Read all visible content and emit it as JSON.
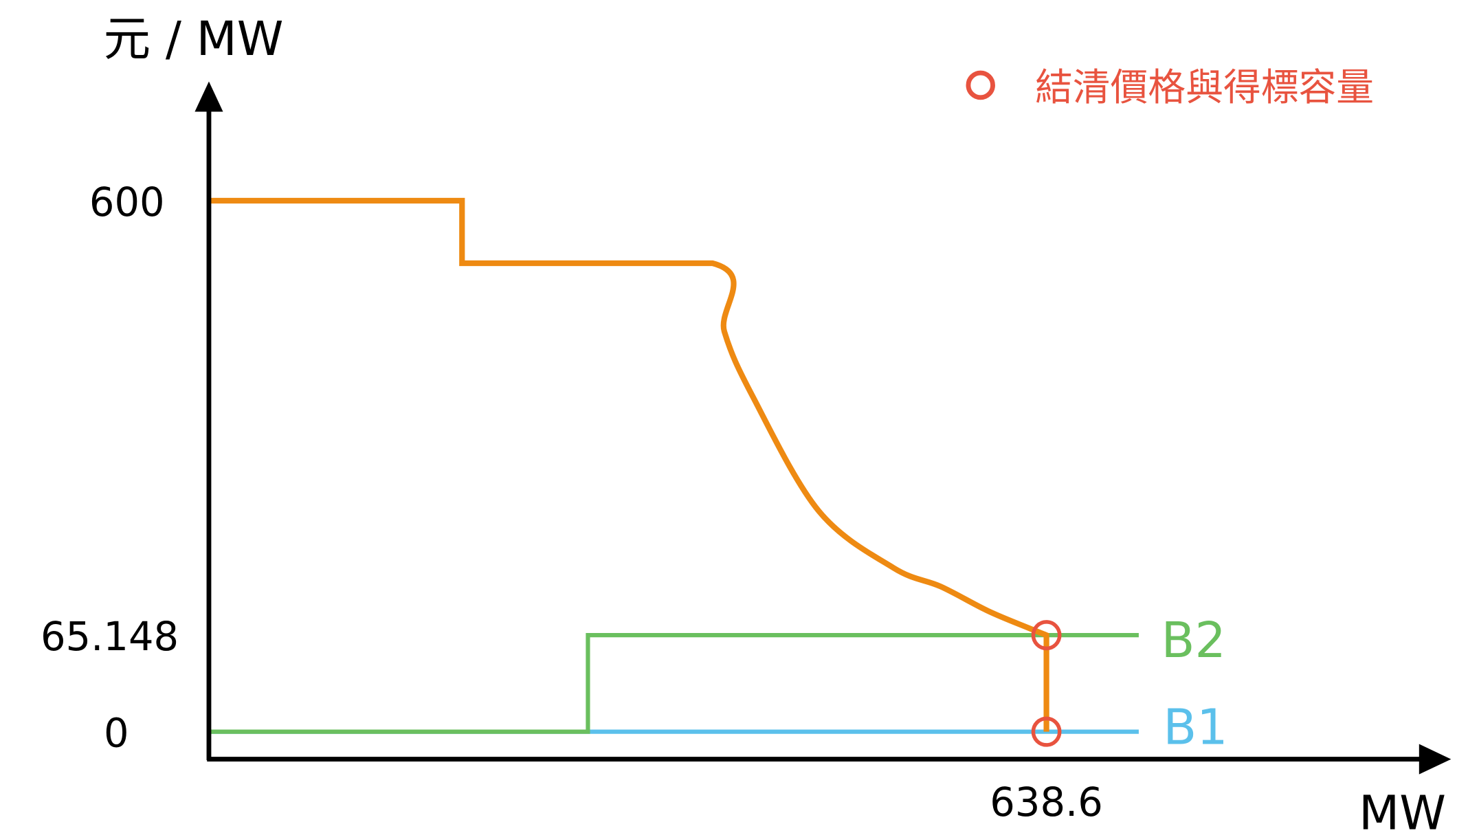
{
  "chart_data": {
    "type": "line",
    "title": "",
    "ylabel": "元 / MW",
    "xlabel": "MW",
    "y_ticks": [
      {
        "value": 0,
        "label": "0"
      },
      {
        "value": 65.148,
        "label": "65.148"
      },
      {
        "value": 600,
        "label": "600"
      }
    ],
    "x_ticks": [
      {
        "value": 638.6,
        "label": "638.6"
      }
    ],
    "y_scale": "schematic (not to scale)",
    "grid": false,
    "legend": {
      "placement": "top-right",
      "entries": [
        {
          "marker": "circle",
          "label": "結清價格與得標容量",
          "color": "#e8533f"
        }
      ]
    },
    "series": [
      {
        "name": "",
        "color": "#ee8a12",
        "points": [
          [
            0,
            600
          ],
          [
            193,
            600
          ],
          [
            193,
            523
          ],
          [
            384,
            523
          ],
          [
            393,
            439
          ],
          [
            415,
            358
          ],
          [
            465,
            218
          ],
          [
            522,
            148
          ],
          [
            558,
            125
          ],
          [
            594,
            95
          ],
          [
            625,
            74
          ],
          [
            638.6,
            65.148
          ],
          [
            638.6,
            0
          ]
        ]
      },
      {
        "name": "B2",
        "color": "#6abf5e",
        "points": [
          [
            0,
            0
          ],
          [
            289,
            0
          ],
          [
            289,
            65.148
          ],
          [
            709,
            65.148
          ]
        ]
      },
      {
        "name": "B1",
        "color": "#5bc0eb",
        "points": [
          [
            0,
            0
          ],
          [
            709,
            0
          ]
        ]
      }
    ],
    "markers": [
      {
        "x": 638.6,
        "y": 65.148,
        "color": "#e8533f"
      },
      {
        "x": 638.6,
        "y": 0,
        "color": "#e8533f"
      }
    ]
  }
}
